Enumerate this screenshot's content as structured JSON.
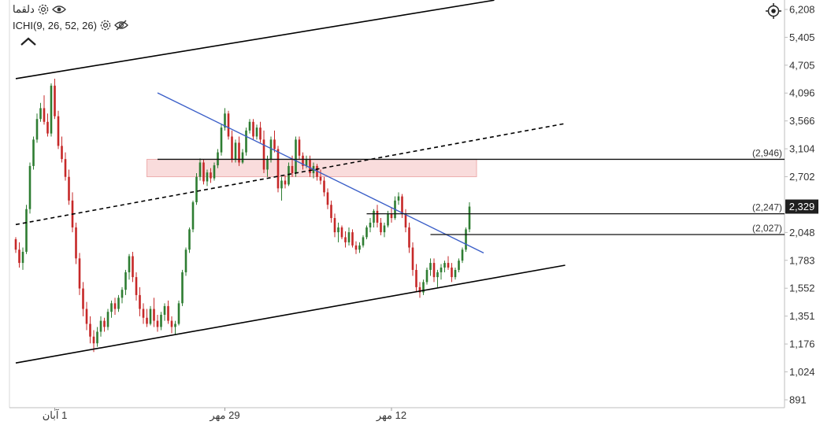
{
  "legend": {
    "symbol": "دلقما",
    "indicator": "ICHI(9, 26, 52, 26)",
    "icons": [
      "gear-icon",
      "eye-icon",
      "gear-icon",
      "eye-off-icon",
      "chevron-up-icon",
      "crosshair-icon"
    ]
  },
  "colors": {
    "up": "#2e7d32",
    "down": "#c62828",
    "trendline": "#3b5fc8",
    "channel": "#000000",
    "zone": "#f9d6d6",
    "zone_border": "#eaa0a0",
    "price_badge": "#1f1f1f"
  },
  "chart_data": {
    "type": "candlestick",
    "y_axis": {
      "scale": "log",
      "ticks": [
        6208,
        5405,
        4705,
        4096,
        3566,
        3104,
        2702,
        2329,
        2048,
        1783,
        1552,
        1351,
        1176,
        1024,
        891
      ],
      "labels": [
        "6,208",
        "5,405",
        "4,705",
        "4,096",
        "3,566",
        "3,104",
        "2,702",
        "2,329",
        "2,048",
        "1,783",
        "1,552",
        "1,351",
        "1,176",
        "1,024",
        "891"
      ],
      "range": [
        850,
        6500
      ]
    },
    "x_axis": {
      "ticks": [
        {
          "label": "1 آبان",
          "index": 11
        },
        {
          "label": "29 مهر",
          "index": 59
        },
        {
          "label": "12 مهر",
          "index": 106
        }
      ],
      "range": [
        0,
        155
      ]
    },
    "last_price": {
      "value": 2329,
      "label": "2,329"
    },
    "horizontal_levels": [
      {
        "value": 2946,
        "label": "(2,946)",
        "from_index": 40
      },
      {
        "value": 2247,
        "label": "(2,247)",
        "from_index": 99
      },
      {
        "value": 2027,
        "label": "(2,027)",
        "from_index": 117
      }
    ],
    "zone": {
      "from_index": 37,
      "to_index": 130,
      "top": 2946,
      "bottom": 2702
    },
    "trendlines": [
      {
        "name": "upper-channel",
        "style": "solid",
        "from": [
          0,
          4400
        ],
        "to": [
          135,
          6500
        ]
      },
      {
        "name": "lower-channel",
        "style": "solid",
        "from": [
          0,
          1070
        ],
        "to": [
          155,
          1740
        ]
      },
      {
        "name": "mid-channel",
        "style": "dashed",
        "from": [
          0,
          2130
        ],
        "to": [
          155,
          3520
        ]
      },
      {
        "name": "descending",
        "style": "solid-blue",
        "from": [
          40,
          4100
        ],
        "to": [
          132,
          1850
        ]
      }
    ],
    "candles": [
      [
        1980,
        2000,
        1850,
        1880
      ],
      [
        1880,
        1950,
        1720,
        1760
      ],
      [
        1760,
        1900,
        1700,
        1860
      ],
      [
        1860,
        2350,
        1840,
        2300
      ],
      [
        2300,
        2900,
        2250,
        2850
      ],
      [
        2850,
        3300,
        2800,
        3250
      ],
      [
        3250,
        3700,
        3200,
        3600
      ],
      [
        3600,
        3900,
        3550,
        3800
      ],
      [
        3800,
        4050,
        3500,
        3550
      ],
      [
        3550,
        3700,
        3300,
        3350
      ],
      [
        3350,
        4300,
        3300,
        4250
      ],
      [
        4250,
        4400,
        3600,
        3650
      ],
      [
        3650,
        3750,
        3100,
        3150
      ],
      [
        3150,
        3300,
        2900,
        2950
      ],
      [
        2950,
        3050,
        2650,
        2700
      ],
      [
        2700,
        2800,
        2350,
        2400
      ],
      [
        2400,
        2500,
        2050,
        2100
      ],
      [
        2100,
        2150,
        1750,
        1800
      ],
      [
        1800,
        1850,
        1500,
        1550
      ],
      [
        1550,
        1600,
        1350,
        1400
      ],
      [
        1400,
        1450,
        1260,
        1300
      ],
      [
        1300,
        1350,
        1180,
        1220
      ],
      [
        1220,
        1260,
        1130,
        1180
      ],
      [
        1180,
        1280,
        1160,
        1250
      ],
      [
        1250,
        1350,
        1220,
        1320
      ],
      [
        1320,
        1340,
        1250,
        1280
      ],
      [
        1280,
        1400,
        1260,
        1380
      ],
      [
        1380,
        1460,
        1340,
        1440
      ],
      [
        1440,
        1480,
        1360,
        1400
      ],
      [
        1400,
        1500,
        1380,
        1480
      ],
      [
        1480,
        1560,
        1440,
        1540
      ],
      [
        1540,
        1700,
        1500,
        1680
      ],
      [
        1680,
        1840,
        1620,
        1820
      ],
      [
        1820,
        1860,
        1600,
        1640
      ],
      [
        1640,
        1680,
        1460,
        1500
      ],
      [
        1500,
        1560,
        1350,
        1400
      ],
      [
        1400,
        1440,
        1300,
        1340
      ],
      [
        1340,
        1400,
        1280,
        1300
      ],
      [
        1300,
        1420,
        1290,
        1400
      ],
      [
        1400,
        1480,
        1280,
        1320
      ],
      [
        1320,
        1360,
        1250,
        1280
      ],
      [
        1280,
        1380,
        1260,
        1360
      ],
      [
        1360,
        1440,
        1320,
        1420
      ],
      [
        1420,
        1460,
        1300,
        1320
      ],
      [
        1320,
        1350,
        1240,
        1280
      ],
      [
        1280,
        1320,
        1230,
        1300
      ],
      [
        1300,
        1460,
        1290,
        1440
      ],
      [
        1440,
        1700,
        1420,
        1680
      ],
      [
        1680,
        1900,
        1650,
        1880
      ],
      [
        1880,
        2100,
        1850,
        2080
      ],
      [
        2080,
        2400,
        2050,
        2380
      ],
      [
        2380,
        2750,
        2350,
        2700
      ],
      [
        2700,
        2960,
        2650,
        2900
      ],
      [
        2900,
        2950,
        2600,
        2640
      ],
      [
        2640,
        2800,
        2580,
        2760
      ],
      [
        2760,
        2820,
        2620,
        2680
      ],
      [
        2680,
        2900,
        2650,
        2860
      ],
      [
        2860,
        3100,
        2820,
        3050
      ],
      [
        3050,
        3500,
        3000,
        3450
      ],
      [
        3450,
        3800,
        3400,
        3700
      ],
      [
        3700,
        3750,
        3250,
        3300
      ],
      [
        3300,
        3400,
        2900,
        2950
      ],
      [
        2950,
        3250,
        2900,
        3200
      ],
      [
        3200,
        3300,
        2850,
        2900
      ],
      [
        2900,
        3100,
        2880,
        3050
      ],
      [
        3050,
        3450,
        3000,
        3400
      ],
      [
        3400,
        3600,
        3350,
        3550
      ],
      [
        3550,
        3600,
        3250,
        3300
      ],
      [
        3300,
        3500,
        3250,
        3450
      ],
      [
        3450,
        3550,
        3200,
        3250
      ],
      [
        3250,
        3400,
        2750,
        2800
      ],
      [
        2800,
        3000,
        2700,
        2950
      ],
      [
        2950,
        3300,
        2900,
        3250
      ],
      [
        3250,
        3400,
        3050,
        3100
      ],
      [
        3100,
        3150,
        2500,
        2550
      ],
      [
        2550,
        2700,
        2400,
        2650
      ],
      [
        2650,
        2720,
        2550,
        2600
      ],
      [
        2600,
        2900,
        2580,
        2850
      ],
      [
        2850,
        3000,
        2700,
        2750
      ],
      [
        2750,
        3300,
        2700,
        3250
      ],
      [
        3250,
        3300,
        2950,
        3000
      ],
      [
        3000,
        3050,
        2800,
        2850
      ],
      [
        2850,
        3000,
        2820,
        2950
      ],
      [
        2950,
        3000,
        2700,
        2750
      ],
      [
        2750,
        2900,
        2680,
        2850
      ],
      [
        2850,
        2880,
        2650,
        2700
      ],
      [
        2700,
        2800,
        2600,
        2650
      ],
      [
        2650,
        2700,
        2450,
        2500
      ],
      [
        2500,
        2550,
        2300,
        2350
      ],
      [
        2350,
        2400,
        2150,
        2200
      ],
      [
        2200,
        2250,
        2000,
        2050
      ],
      [
        2050,
        2150,
        1950,
        2100
      ],
      [
        2100,
        2120,
        1980,
        2000
      ],
      [
        2000,
        2060,
        1900,
        1950
      ],
      [
        1950,
        2100,
        1920,
        2050
      ],
      [
        2050,
        2080,
        1900,
        1920
      ],
      [
        1920,
        1960,
        1840,
        1880
      ],
      [
        1880,
        1950,
        1850,
        1920
      ],
      [
        1920,
        2020,
        1900,
        2000
      ],
      [
        2000,
        2120,
        1980,
        2100
      ],
      [
        2100,
        2200,
        2050,
        2150
      ],
      [
        2150,
        2300,
        2100,
        2280
      ],
      [
        2280,
        2350,
        2100,
        2150
      ],
      [
        2150,
        2200,
        2020,
        2050
      ],
      [
        2050,
        2150,
        2000,
        2120
      ],
      [
        2120,
        2280,
        2100,
        2250
      ],
      [
        2250,
        2320,
        2150,
        2200
      ],
      [
        2200,
        2450,
        2180,
        2400
      ],
      [
        2400,
        2500,
        2350,
        2450
      ],
      [
        2450,
        2480,
        2200,
        2250
      ],
      [
        2250,
        2300,
        2050,
        2100
      ],
      [
        2100,
        2150,
        1850,
        1900
      ],
      [
        1900,
        1950,
        1650,
        1700
      ],
      [
        1700,
        1750,
        1520,
        1560
      ],
      [
        1560,
        1600,
        1480,
        1520
      ],
      [
        1520,
        1620,
        1500,
        1600
      ],
      [
        1600,
        1720,
        1580,
        1700
      ],
      [
        1700,
        1800,
        1650,
        1760
      ],
      [
        1760,
        1800,
        1600,
        1640
      ],
      [
        1640,
        1700,
        1560,
        1680
      ],
      [
        1680,
        1750,
        1620,
        1720
      ],
      [
        1720,
        1780,
        1680,
        1760
      ],
      [
        1760,
        1820,
        1700,
        1720
      ],
      [
        1720,
        1760,
        1600,
        1640
      ],
      [
        1640,
        1720,
        1620,
        1700
      ],
      [
        1700,
        1800,
        1680,
        1780
      ],
      [
        1780,
        1900,
        1760,
        1880
      ],
      [
        1880,
        2100,
        1860,
        2080
      ],
      [
        2080,
        2380,
        2050,
        2329
      ]
    ]
  }
}
